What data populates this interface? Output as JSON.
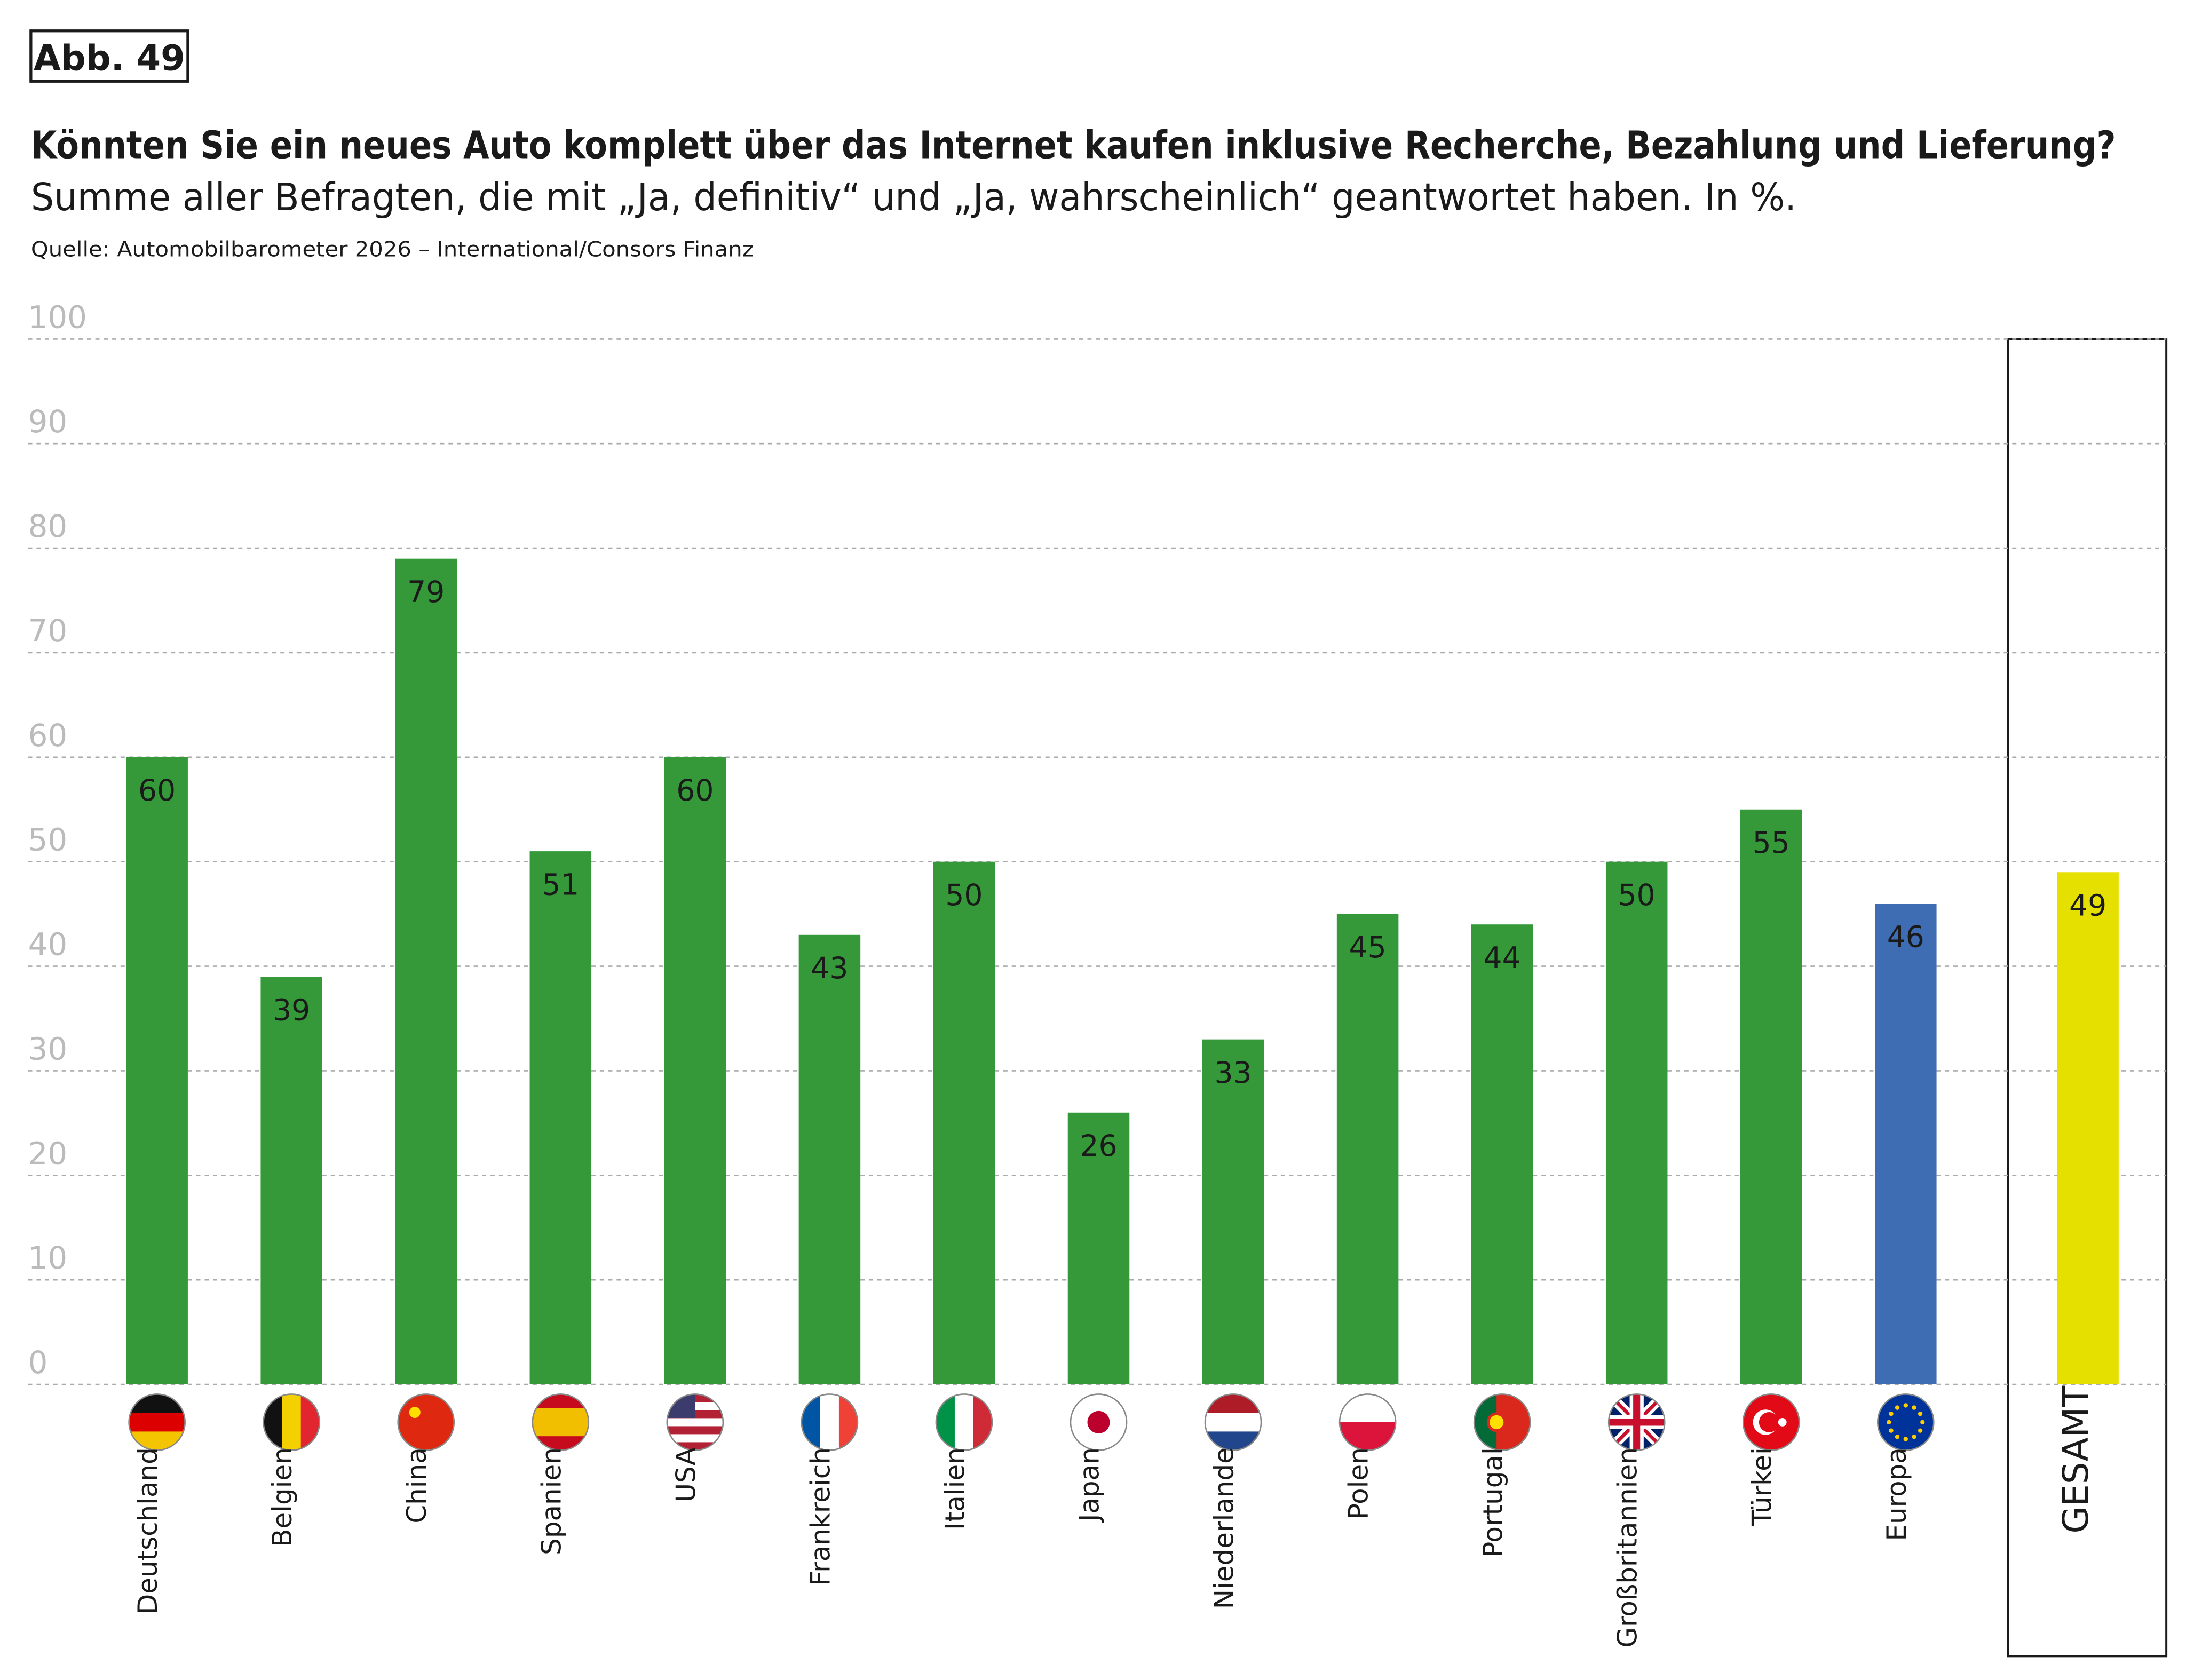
{
  "chart_data": {
    "type": "bar",
    "figure_label": "Abb. 49",
    "title": "Könnten Sie ein neues Auto komplett über das Internet kaufen inklusive Recherche, Bezahlung und Lieferung?",
    "subtitle": "Summe aller Befragten, die mit „Ja, definitiv“ und „Ja, wahrscheinlich“ geantwortet haben. In %.",
    "source": "Quelle: Automobilbarometer 2026 – International/Consors Finanz",
    "categories": [
      "Deutschland",
      "Belgien",
      "China",
      "Spanien",
      "USA",
      "Frankreich",
      "Italien",
      "Japan",
      "Niederlande",
      "Polen",
      "Portugal",
      "Großbritannien",
      "Türkei",
      "Europa",
      "GESAMT"
    ],
    "values": [
      60,
      39,
      79,
      51,
      60,
      43,
      50,
      26,
      33,
      45,
      44,
      50,
      55,
      46,
      49
    ],
    "colors": [
      "#35993a",
      "#35993a",
      "#35993a",
      "#35993a",
      "#35993a",
      "#35993a",
      "#35993a",
      "#35993a",
      "#35993a",
      "#35993a",
      "#35993a",
      "#35993a",
      "#35993a",
      "#3e6db4",
      "#e6e000"
    ],
    "ylim": [
      0,
      100
    ],
    "yticks": [
      0,
      10,
      20,
      30,
      40,
      50,
      60,
      70,
      80,
      90,
      100
    ],
    "grid": true
  }
}
